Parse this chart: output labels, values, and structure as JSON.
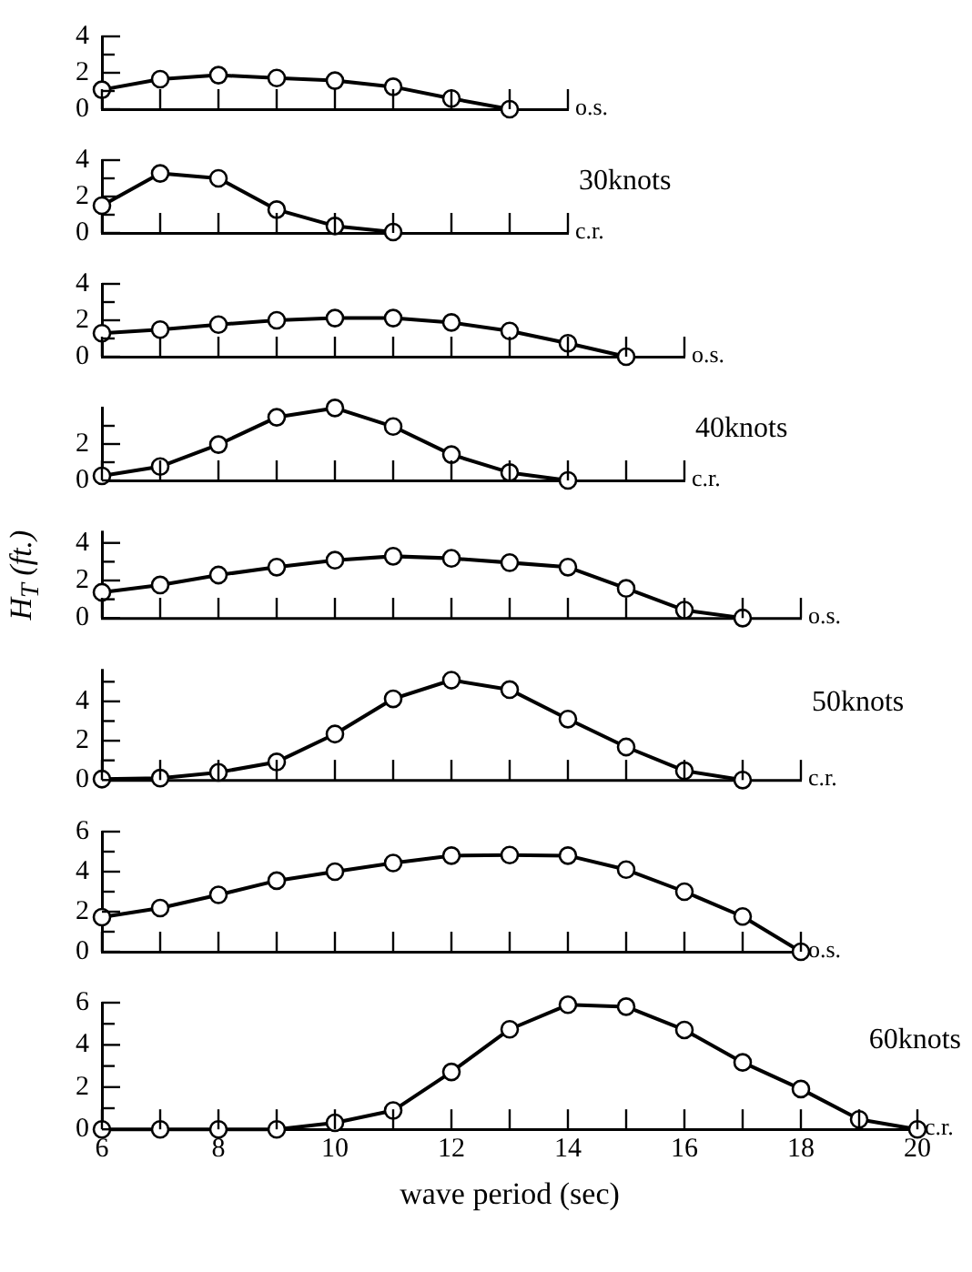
{
  "chart_data": [
    {
      "type": "line",
      "categories": [
        null,
        null,
        null,
        null,
        null,
        null,
        null,
        null,
        null
      ],
      "series": [
        {
          "color": "#000000",
          "values": [
            1.07,
            1.65,
            1.87,
            1.71,
            1.57,
            1.23,
            0.59,
            0,
            null
          ]
        }
      ],
      "ylim": [
        0,
        4
      ],
      "yticks": [
        0,
        {
          "value": 1,
          "label": null
        },
        2,
        {
          "value": 3,
          "label": null
        },
        4
      ],
      "tick_labels": "y",
      "marker": "circle",
      "annotations": [
        "o.s."
      ]
    },
    {
      "type": "line",
      "categories": [
        null,
        null,
        null,
        null,
        null,
        null,
        null,
        null,
        null
      ],
      "series": [
        {
          "color": "#000000",
          "values": [
            1.5,
            3.27,
            3.0,
            1.28,
            0.38,
            0.05,
            null,
            null,
            null
          ]
        }
      ],
      "ylim": [
        0,
        4
      ],
      "yticks": [
        0,
        {
          "value": 1,
          "label": null
        },
        2,
        {
          "value": 3,
          "label": null
        },
        4
      ],
      "tick_labels": "y",
      "marker": "circle",
      "annotations": [
        "c.r.",
        "30knots"
      ]
    },
    {
      "type": "line",
      "categories": [
        null,
        null,
        null,
        null,
        null,
        null,
        null,
        null,
        null,
        null,
        null
      ],
      "series": [
        {
          "color": "#000000",
          "values": [
            1.29,
            1.49,
            1.76,
            2.0,
            2.12,
            2.12,
            1.88,
            1.41,
            0.74,
            0,
            null
          ]
        }
      ],
      "ylim": [
        0,
        4
      ],
      "yticks": [
        0,
        {
          "value": 1,
          "label": null
        },
        2,
        {
          "value": 3,
          "label": null
        },
        4
      ],
      "tick_labels": "y",
      "marker": "circle",
      "annotations": [
        "o.s."
      ]
    },
    {
      "type": "line",
      "categories": [
        null,
        null,
        null,
        null,
        null,
        null,
        null,
        null,
        null,
        null,
        null
      ],
      "series": [
        {
          "color": "#000000",
          "values": [
            0.25,
            0.76,
            1.97,
            3.47,
            3.98,
            2.96,
            1.42,
            0.43,
            0,
            null,
            null
          ]
        }
      ],
      "ylim": [
        0,
        4
      ],
      "yticks": [
        0,
        {
          "value": 1,
          "label": null
        },
        2,
        {
          "value": 3,
          "label": null
        }
      ],
      "tick_labels": "y",
      "marker": "circle",
      "annotations": [
        "c.r.",
        "40knots"
      ]
    },
    {
      "type": "line",
      "categories": [
        null,
        null,
        null,
        null,
        null,
        null,
        null,
        null,
        null,
        null,
        null,
        null,
        null
      ],
      "series": [
        {
          "color": "#000000",
          "values": [
            1.37,
            1.76,
            2.29,
            2.71,
            3.08,
            3.29,
            3.18,
            2.95,
            2.71,
            1.58,
            0.42,
            0,
            null
          ]
        }
      ],
      "ylim": [
        0,
        4.6
      ],
      "yticks": [
        0,
        {
          "value": 1,
          "label": null
        },
        2,
        {
          "value": 3,
          "label": null
        },
        4
      ],
      "tick_labels": "y",
      "marker": "circle",
      "ylabel": "H$_{T}$ (ft.)",
      "annotations": [
        "o.s."
      ]
    },
    {
      "type": "line",
      "categories": [
        null,
        null,
        null,
        null,
        null,
        null,
        null,
        null,
        null,
        null,
        null,
        null,
        null
      ],
      "series": [
        {
          "color": "#000000",
          "values": [
            0.05,
            0.1,
            0.39,
            0.92,
            2.34,
            4.13,
            5.08,
            4.6,
            3.1,
            1.68,
            0.47,
            0,
            null
          ]
        }
      ],
      "ylim": [
        0,
        5.6
      ],
      "yticks": [
        0,
        {
          "value": 1,
          "label": null
        },
        2,
        {
          "value": 3,
          "label": null
        },
        4,
        {
          "value": 5,
          "label": null
        }
      ],
      "tick_labels": "y",
      "marker": "circle",
      "annotations": [
        "c.r.",
        "50knots"
      ]
    },
    {
      "type": "line",
      "categories": [
        null,
        null,
        null,
        null,
        null,
        null,
        null,
        null,
        null,
        null,
        null,
        null,
        null
      ],
      "series": [
        {
          "color": "#000000",
          "values": [
            1.73,
            2.18,
            2.84,
            3.55,
            4.0,
            4.43,
            4.8,
            4.83,
            4.8,
            4.1,
            3.0,
            1.76,
            0
          ]
        }
      ],
      "ylim": [
        0,
        6
      ],
      "yticks": [
        0,
        {
          "value": 1,
          "label": null
        },
        2,
        {
          "value": 3,
          "label": null
        },
        4,
        {
          "value": 5,
          "label": null
        },
        6
      ],
      "tick_labels": "y",
      "marker": "circle",
      "annotations": [
        "o.s."
      ]
    },
    {
      "type": "line",
      "x": [
        6,
        7,
        8,
        9,
        10,
        11,
        12,
        13,
        14,
        15,
        16,
        17,
        18,
        19,
        20
      ],
      "series": [
        {
          "color": "#000000",
          "values": [
            0,
            0,
            0,
            0,
            0.31,
            0.89,
            2.72,
            4.74,
            5.9,
            5.81,
            4.71,
            3.17,
            1.91,
            0.47,
            0
          ]
        }
      ],
      "xlim": [
        6,
        20
      ],
      "xticks": [
        6,
        {
          "value": 7,
          "label": null
        },
        8,
        {
          "value": 9,
          "label": null
        },
        10,
        {
          "value": 11,
          "label": null
        },
        12,
        {
          "value": 13,
          "label": null
        },
        14,
        {
          "value": 15,
          "label": null
        },
        16,
        {
          "value": 17,
          "label": null
        },
        18,
        {
          "value": 19,
          "label": null
        },
        20
      ],
      "ylim": [
        0,
        6
      ],
      "yticks": [
        0,
        {
          "value": 1,
          "label": null
        },
        2,
        {
          "value": 3,
          "label": null
        },
        4,
        {
          "value": 5,
          "label": null
        },
        6
      ],
      "marker": "circle",
      "xlabel": "wave period (sec)",
      "annotations": [
        "c.r.",
        "60knots"
      ]
    }
  ]
}
